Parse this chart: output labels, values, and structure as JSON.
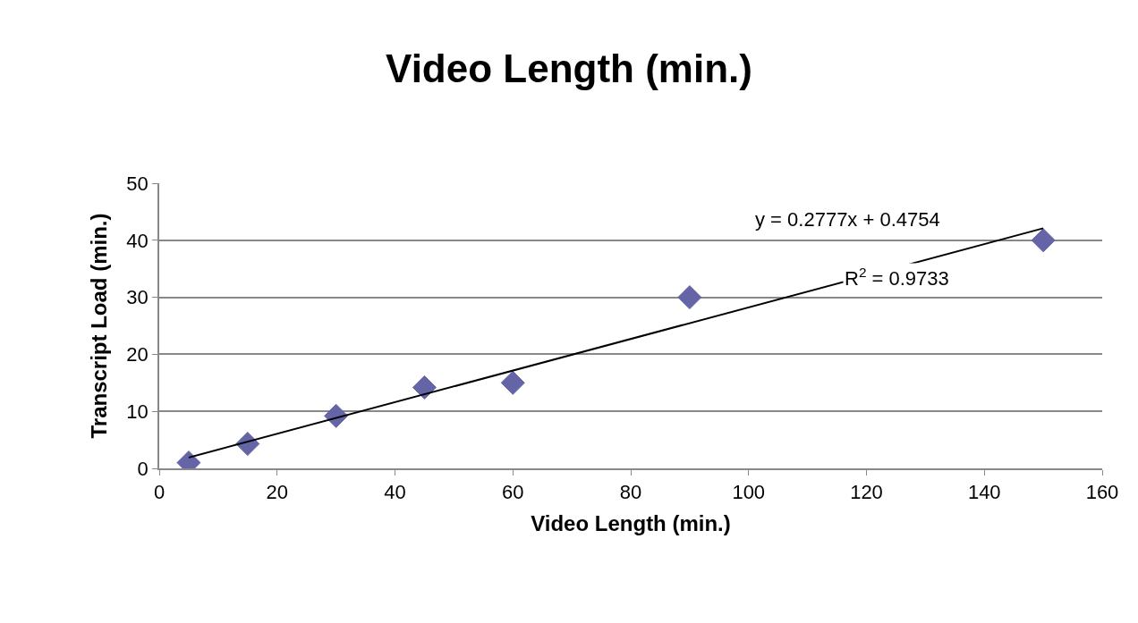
{
  "chart_data": {
    "type": "scatter",
    "title": "Video Length (min.)",
    "xlabel": "Video Length (min.)",
    "ylabel": "Transcript Load (min.)",
    "x": [
      5,
      15,
      30,
      45,
      60,
      90,
      150
    ],
    "series": [
      {
        "color": "#6464a6",
        "values": [
          1,
          4.3,
          9.2,
          14.2,
          15,
          30,
          40
        ],
        "marker": "diamond"
      },
      {
        "type": "line",
        "color": "#000000",
        "x": [
          5,
          150
        ],
        "values": [
          1.9,
          42.1
        ],
        "marker": "none",
        "line_style": "solid"
      }
    ],
    "xlim": [
      0,
      160
    ],
    "xticks": [
      0,
      20,
      40,
      60,
      80,
      100,
      120,
      140,
      160
    ],
    "ylim": [
      0,
      50
    ],
    "yticks": [
      0,
      10,
      20,
      30,
      40,
      50
    ],
    "grid": "y",
    "annotations": [
      "y = 0.2777x + 0.4754",
      "R$^{2}$ = 0.9733"
    ]
  }
}
